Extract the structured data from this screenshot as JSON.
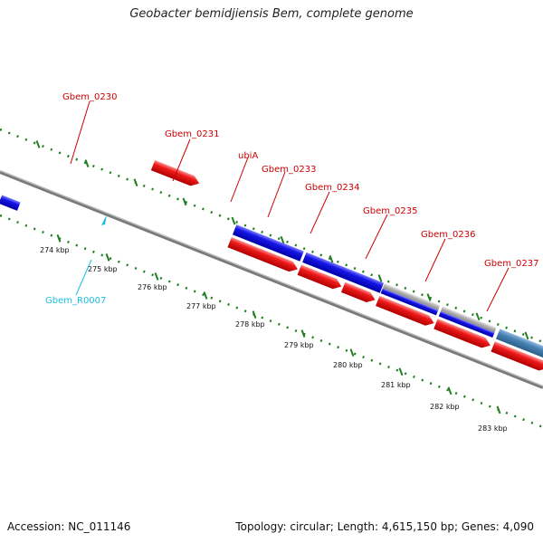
{
  "title": "Geobacter bemidjiensis Bem, complete genome",
  "footer": {
    "accession": "Accession: NC_011146",
    "topology": "Topology: circular; Length: 4,615,150 bp; Genes: 4,090"
  },
  "colors": {
    "forward_cds": "#1515e6",
    "reverse_cds": "#e01010",
    "gene_label": "#cc0000",
    "rna_label": "#19bde0",
    "tick": "#1f7f1f",
    "backbone": "#7a7a7a"
  },
  "ruler": [
    "274 kbp",
    "275 kbp",
    "276 kbp",
    "277 kbp",
    "278 kbp",
    "279 kbp",
    "280 kbp",
    "281 kbp",
    "282 kbp",
    "283 kbp"
  ],
  "gene_labels": [
    "Gbem_0230",
    "Gbem_0231",
    "ubiA",
    "Gbem_0233",
    "Gbem_0234",
    "Gbem_0235",
    "Gbem_0236",
    "Gbem_0237"
  ],
  "rna_labels": [
    "Gbem_R0007"
  ]
}
